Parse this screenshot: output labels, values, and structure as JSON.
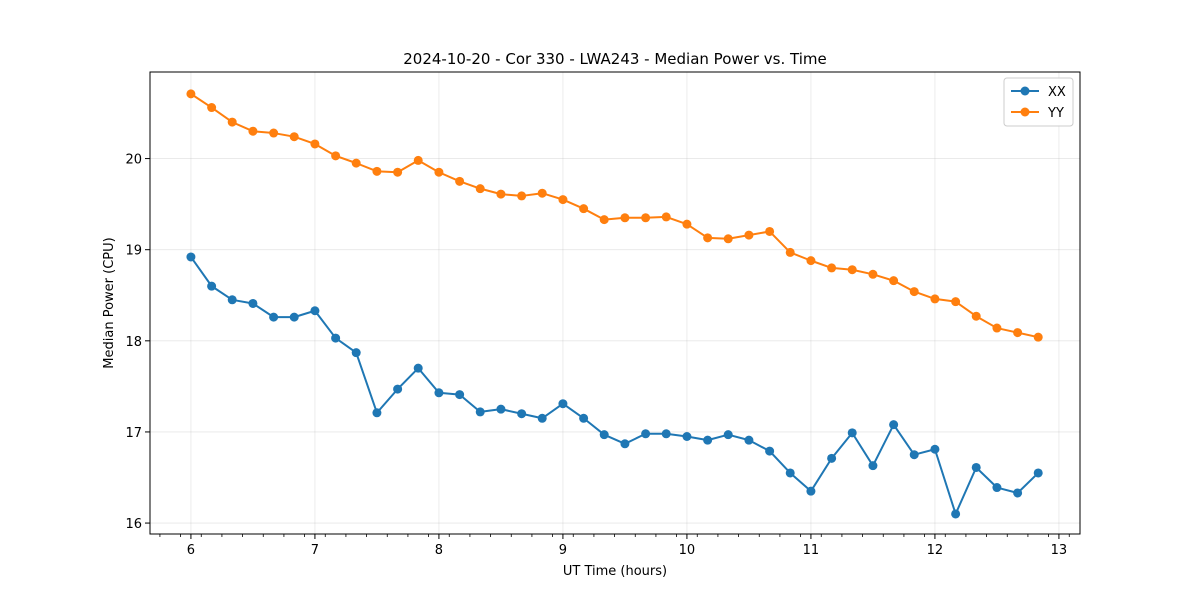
{
  "chart_data": {
    "type": "line",
    "title": "2024-10-20 - Cor 330 - LWA243 - Median Power vs. Time",
    "xlabel": "UT Time (hours)",
    "ylabel": "Median Power (CPU)",
    "xlim": [
      5.67,
      13.17
    ],
    "ylim": [
      15.88,
      20.95
    ],
    "xticks": [
      6,
      7,
      8,
      9,
      10,
      11,
      12,
      13
    ],
    "xtick_labels": [
      "6",
      "7",
      "8",
      "9",
      "10",
      "11",
      "12",
      "13"
    ],
    "yticks": [
      16,
      17,
      18,
      19,
      20
    ],
    "ytick_labels": [
      "16",
      "17",
      "18",
      "19",
      "20"
    ],
    "grid": true,
    "legend_position": "top-right",
    "x": [
      6.0,
      6.167,
      6.333,
      6.5,
      6.667,
      6.833,
      7.0,
      7.167,
      7.333,
      7.5,
      7.667,
      7.833,
      8.0,
      8.167,
      8.333,
      8.5,
      8.667,
      8.833,
      9.0,
      9.167,
      9.333,
      9.5,
      9.667,
      9.833,
      10.0,
      10.167,
      10.333,
      10.5,
      10.667,
      10.833,
      11.0,
      11.167,
      11.333,
      11.5,
      11.667,
      11.833,
      12.0,
      12.167,
      12.333,
      12.5,
      12.667,
      12.833
    ],
    "series": [
      {
        "name": "XX",
        "color": "#1f77b4",
        "values": [
          18.92,
          18.6,
          18.45,
          18.41,
          18.26,
          18.26,
          18.33,
          18.03,
          17.87,
          17.21,
          17.47,
          17.7,
          17.43,
          17.41,
          17.22,
          17.25,
          17.2,
          17.15,
          17.31,
          17.15,
          16.97,
          16.87,
          16.98,
          16.98,
          16.95,
          16.91,
          16.97,
          16.91,
          16.79,
          16.55,
          16.35,
          16.71,
          16.99,
          16.63,
          17.08,
          16.75,
          16.81,
          16.1,
          16.61,
          16.39,
          16.33,
          16.55
        ]
      },
      {
        "name": "YY",
        "color": "#ff7f0e",
        "values": [
          20.71,
          20.56,
          20.4,
          20.3,
          20.28,
          20.24,
          20.16,
          20.03,
          19.95,
          19.86,
          19.85,
          19.98,
          19.85,
          19.75,
          19.67,
          19.61,
          19.59,
          19.62,
          19.55,
          19.45,
          19.33,
          19.35,
          19.35,
          19.36,
          19.28,
          19.13,
          19.12,
          19.16,
          19.2,
          18.97,
          18.88,
          18.8,
          18.78,
          18.73,
          18.66,
          18.54,
          18.46,
          18.43,
          18.27,
          18.14,
          18.09,
          18.04
        ]
      }
    ]
  }
}
